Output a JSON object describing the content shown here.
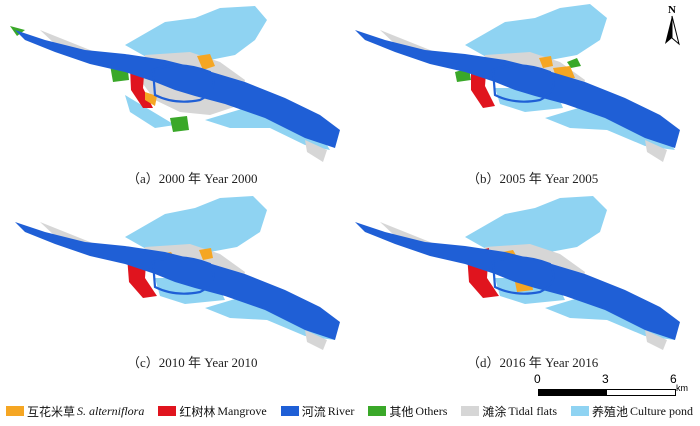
{
  "panels": [
    {
      "caption": "（a）2000 年 Year 2000"
    },
    {
      "caption": "（b）2005 年 Year 2005"
    },
    {
      "caption": "（c）2010 年 Year 2010"
    },
    {
      "caption": "（d）2016 年 Year 2016"
    }
  ],
  "north_arrow": {
    "label": "N"
  },
  "scale_bar": {
    "ticks": [
      "0",
      "3",
      "6"
    ],
    "unit": "km"
  },
  "legend": [
    {
      "cn": "互花米草",
      "en": "S. alterniflora",
      "italic": true,
      "color": "#f5a623"
    },
    {
      "cn": "红树林",
      "en": "Mangrove",
      "italic": false,
      "color": "#e0141e"
    },
    {
      "cn": "河流",
      "en": "River",
      "italic": false,
      "color": "#1f5fd6"
    },
    {
      "cn": "其他",
      "en": "Others",
      "italic": false,
      "color": "#3aa829"
    },
    {
      "cn": "滩涂",
      "en": "Tidal flats",
      "italic": false,
      "color": "#d6d6d6"
    },
    {
      "cn": "养殖池",
      "en": "Culture pond",
      "italic": false,
      "color": "#8fd3f2"
    }
  ]
}
